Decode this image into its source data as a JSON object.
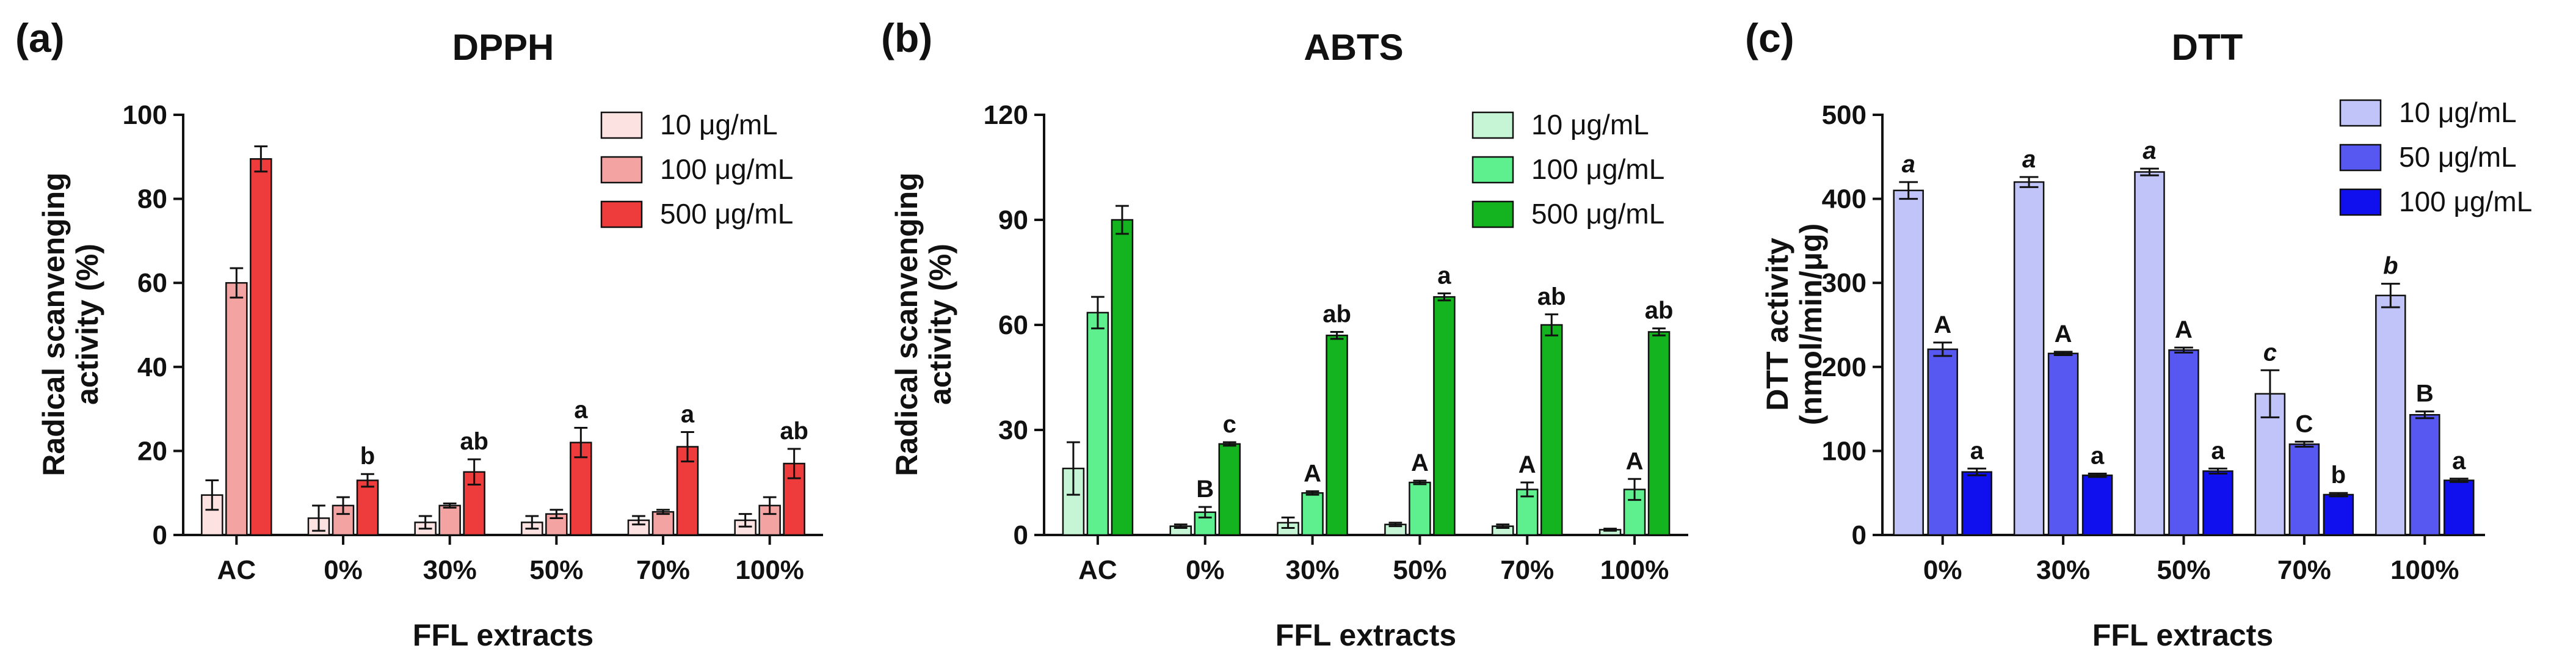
{
  "chart_data": [
    {
      "type": "bar",
      "panel": "(a)",
      "title": "DPPH",
      "xlabel": "FFL extracts",
      "ylabel": [
        "Radical scanvenging",
        "activity (%)"
      ],
      "ylim": [
        0,
        100
      ],
      "yticks": [
        0,
        20,
        40,
        60,
        80,
        100
      ],
      "categories": [
        "AC",
        "0%",
        "30%",
        "50%",
        "70%",
        "100%"
      ],
      "series": [
        {
          "name": "10 μg/mL",
          "color": "#fde2e2",
          "values": [
            9.5,
            4,
            3,
            3,
            3.5,
            3.5
          ],
          "errors": [
            3.5,
            3,
            1.5,
            1.5,
            1,
            1.5
          ]
        },
        {
          "name": "100 μg/mL",
          "color": "#f4a3a3",
          "values": [
            60,
            7,
            7,
            5,
            5.5,
            7
          ],
          "errors": [
            3.5,
            2,
            0.5,
            1,
            0.5,
            2
          ]
        },
        {
          "name": "500 μg/mL",
          "color": "#ee3b3b",
          "values": [
            89.5,
            13,
            15,
            22,
            21,
            17
          ],
          "errors": [
            3,
            1.5,
            3,
            3.5,
            3.5,
            3.5
          ]
        }
      ],
      "annotations": [
        {
          "category": 1,
          "series": 2,
          "text": "b",
          "italic": false
        },
        {
          "category": 2,
          "series": 2,
          "text": "ab",
          "italic": false
        },
        {
          "category": 3,
          "series": 2,
          "text": "a",
          "italic": false
        },
        {
          "category": 4,
          "series": 2,
          "text": "a",
          "italic": false
        },
        {
          "category": 5,
          "series": 2,
          "text": "ab",
          "italic": false
        }
      ]
    },
    {
      "type": "bar",
      "panel": "(b)",
      "title": "ABTS",
      "xlabel": "FFL extracts",
      "ylabel": [
        "Radical scanvenging",
        "activity (%)"
      ],
      "ylim": [
        0,
        120
      ],
      "yticks": [
        0,
        30,
        60,
        90,
        120
      ],
      "categories": [
        "AC",
        "0%",
        "30%",
        "50%",
        "70%",
        "100%"
      ],
      "series": [
        {
          "name": "10 μg/mL",
          "color": "#c5f5d4",
          "values": [
            19,
            2.5,
            3.5,
            3,
            2.5,
            1.5
          ],
          "errors": [
            7.5,
            0.5,
            1.5,
            0.5,
            0.5,
            0.3
          ]
        },
        {
          "name": "100 μg/mL",
          "color": "#5ef08e",
          "values": [
            63.5,
            6.5,
            12,
            15,
            13,
            13
          ],
          "errors": [
            4.5,
            1.5,
            0.5,
            0.5,
            2,
            3
          ]
        },
        {
          "name": "500 μg/mL",
          "color": "#13b41f",
          "values": [
            90,
            26,
            57,
            68,
            60,
            58
          ],
          "errors": [
            4,
            0.5,
            1,
            1,
            3,
            1
          ]
        }
      ],
      "annotations": [
        {
          "category": 1,
          "series": 1,
          "text": "B",
          "italic": false
        },
        {
          "category": 1,
          "series": 2,
          "text": "c",
          "italic": false
        },
        {
          "category": 2,
          "series": 1,
          "text": "A",
          "italic": false
        },
        {
          "category": 2,
          "series": 2,
          "text": "ab",
          "italic": false
        },
        {
          "category": 3,
          "series": 1,
          "text": "A",
          "italic": false
        },
        {
          "category": 3,
          "series": 2,
          "text": "a",
          "italic": false
        },
        {
          "category": 4,
          "series": 1,
          "text": "A",
          "italic": false
        },
        {
          "category": 4,
          "series": 2,
          "text": "ab",
          "italic": false
        },
        {
          "category": 5,
          "series": 1,
          "text": "A",
          "italic": false
        },
        {
          "category": 5,
          "series": 2,
          "text": "ab",
          "italic": false
        }
      ]
    },
    {
      "type": "bar",
      "panel": "(c)",
      "title": "DTT",
      "xlabel": "FFL extracts",
      "ylabel": [
        "DTT activity",
        "(nmol/min/μg)"
      ],
      "ylim": [
        0,
        500
      ],
      "yticks": [
        0,
        100,
        200,
        300,
        400,
        500
      ],
      "categories": [
        "0%",
        "30%",
        "50%",
        "70%",
        "100%"
      ],
      "series": [
        {
          "name": "10 μg/mL",
          "color": "#c0c4f8",
          "values": [
            410,
            420,
            432,
            168,
            285
          ],
          "errors": [
            10,
            6,
            4,
            28,
            14
          ]
        },
        {
          "name": "50 μg/mL",
          "color": "#5757f2",
          "values": [
            221,
            216,
            220,
            108,
            143
          ],
          "errors": [
            8,
            2,
            3,
            3,
            4
          ]
        },
        {
          "name": "100 μg/mL",
          "color": "#1010ee",
          "values": [
            75,
            71,
            76,
            48,
            65
          ],
          "errors": [
            4,
            2,
            3,
            2,
            2
          ]
        }
      ],
      "annotations": [
        {
          "category": 0,
          "series": 0,
          "text": "a",
          "italic": true
        },
        {
          "category": 0,
          "series": 1,
          "text": "A",
          "italic": false
        },
        {
          "category": 0,
          "series": 2,
          "text": "a",
          "italic": false
        },
        {
          "category": 1,
          "series": 0,
          "text": "a",
          "italic": true
        },
        {
          "category": 1,
          "series": 1,
          "text": "A",
          "italic": false
        },
        {
          "category": 1,
          "series": 2,
          "text": "a",
          "italic": false
        },
        {
          "category": 2,
          "series": 0,
          "text": "a",
          "italic": true
        },
        {
          "category": 2,
          "series": 1,
          "text": "A",
          "italic": false
        },
        {
          "category": 2,
          "series": 2,
          "text": "a",
          "italic": false
        },
        {
          "category": 3,
          "series": 0,
          "text": "c",
          "italic": true
        },
        {
          "category": 3,
          "series": 1,
          "text": "C",
          "italic": false
        },
        {
          "category": 3,
          "series": 2,
          "text": "b",
          "italic": false
        },
        {
          "category": 4,
          "series": 0,
          "text": "b",
          "italic": true
        },
        {
          "category": 4,
          "series": 1,
          "text": "B",
          "italic": false
        },
        {
          "category": 4,
          "series": 2,
          "text": "a",
          "italic": false
        }
      ]
    }
  ]
}
